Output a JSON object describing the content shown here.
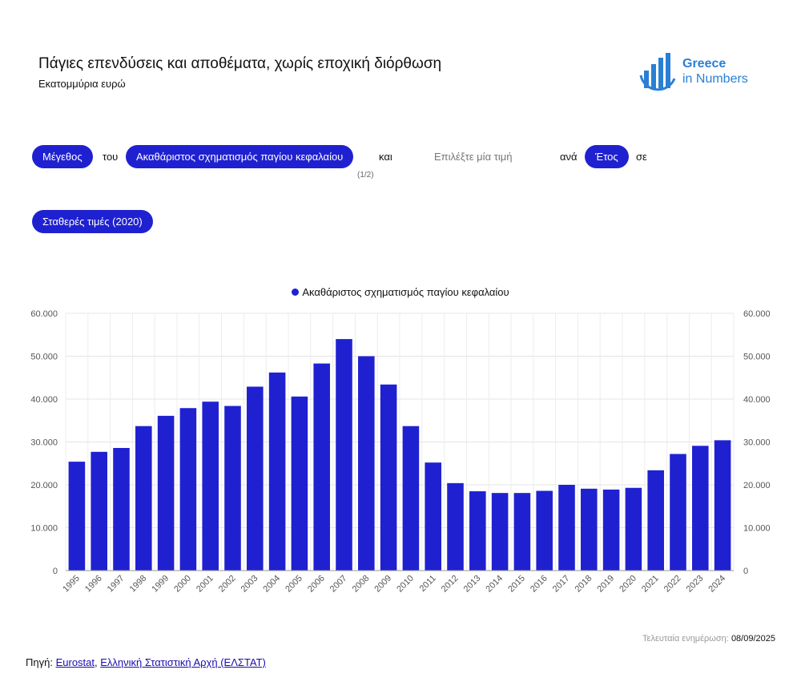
{
  "header": {
    "title": "Πάγιες επενδύσεις και αποθέματα, χωρίς εποχική διόρθωση",
    "subtitle": "Εκατομμύρια ευρώ",
    "logo_line1": "Greece",
    "logo_line2": "in Numbers"
  },
  "filters": {
    "measure": "Μέγεθος",
    "word_tou": "του",
    "series_selector": "Ακαθάριστος σχηματισμός παγίου κεφαλαίου",
    "pager": "(1/2)",
    "word_kai": "και",
    "second_placeholder": "Επιλέξτε μία τιμή",
    "word_ana": "ανά",
    "period": "Έτος",
    "word_se": "σε",
    "prices": "Σταθερές τιμές (2020)"
  },
  "colors": {
    "accent": "#1f21d1",
    "logo": "#2a7fd4"
  },
  "chart_data": {
    "type": "bar",
    "title": "",
    "xlabel": "",
    "ylabel": "",
    "ylim": [
      0,
      60000
    ],
    "yticks": [
      "0",
      "10.000",
      "20.000",
      "30.000",
      "40.000",
      "50.000",
      "60.000"
    ],
    "grid": true,
    "legend_position": "top-center",
    "categories": [
      "1995",
      "1996",
      "1997",
      "1998",
      "1999",
      "2000",
      "2001",
      "2002",
      "2003",
      "2004",
      "2005",
      "2006",
      "2007",
      "2008",
      "2009",
      "2010",
      "2011",
      "2012",
      "2013",
      "2014",
      "2015",
      "2016",
      "2017",
      "2018",
      "2019",
      "2020",
      "2021",
      "2022",
      "2023",
      "2024"
    ],
    "series": [
      {
        "name": "Ακαθάριστος σχηματισμός παγίου κεφαλαίου",
        "color": "#1f21d1",
        "values": [
          25400,
          27700,
          28600,
          33700,
          36100,
          37900,
          39400,
          38400,
          42900,
          46200,
          40600,
          48300,
          54000,
          50000,
          43400,
          33700,
          25200,
          20400,
          18500,
          18100,
          18100,
          18600,
          20000,
          19100,
          18900,
          19300,
          23400,
          27200,
          29100,
          30400
        ]
      }
    ]
  },
  "footer": {
    "updated_label": "Τελευταία ενημέρωση:",
    "updated_date": "08/09/2025",
    "source_label": "Πηγή:",
    "source_link1": "Eurostat",
    "source_sep": ",",
    "source_link2": "Ελληνική Στατιστική Αρχή (ΕΛΣΤΑΤ)"
  }
}
